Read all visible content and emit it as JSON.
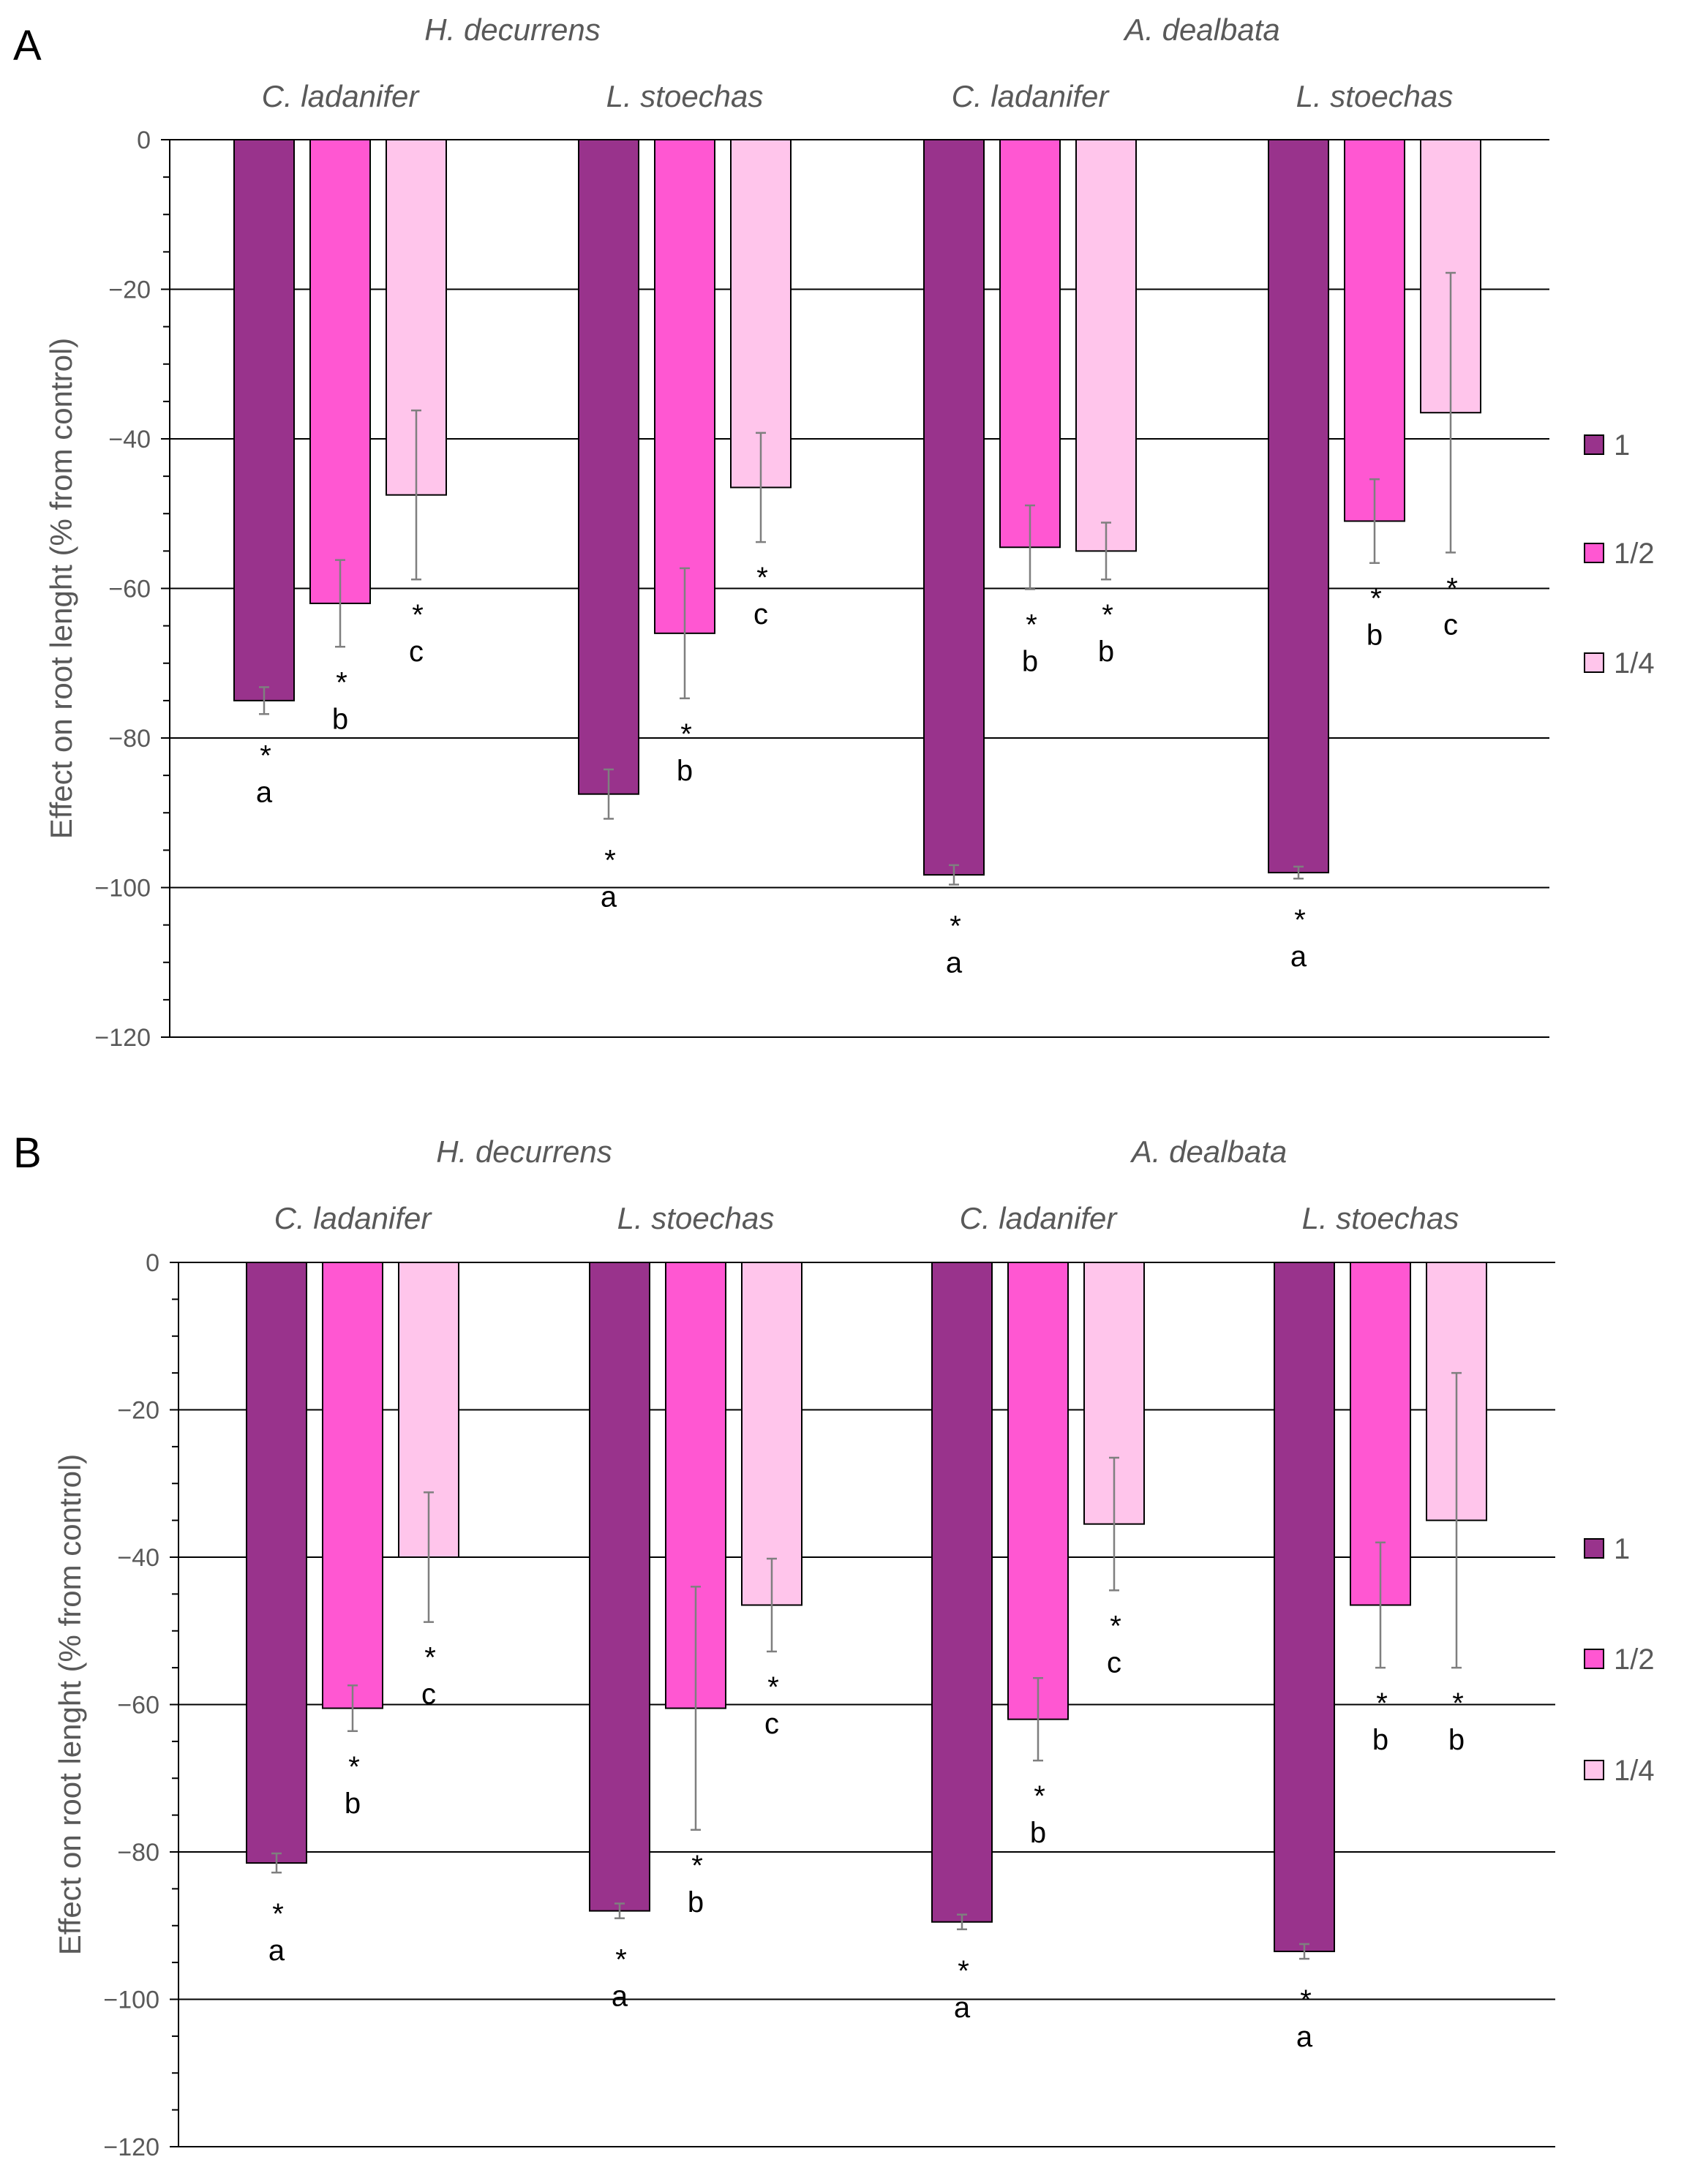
{
  "chart_data": [
    {
      "panel": "A",
      "type": "bar",
      "ylabel": "Effect on root lenght (% from control)",
      "ylim": [
        -120,
        0
      ],
      "yticks": [
        0,
        -20,
        -40,
        -60,
        -80,
        -100,
        -120
      ],
      "ytick_labels": [
        "0",
        "-20",
        "-40",
        "-60",
        "-80",
        "-100",
        "-120"
      ],
      "legend": [
        "1",
        "1/2",
        "1/4"
      ],
      "legend_position": "right",
      "colors": [
        "#99338c",
        "#ff57d2",
        "#ffc5eb"
      ],
      "groups": [
        {
          "host": "H. decurrens",
          "target": "C. ladanifer",
          "values": [
            -75,
            -62,
            -47.5
          ],
          "errors": [
            1.8,
            5.8,
            11.3
          ],
          "stars": [
            "*",
            "*",
            "*"
          ],
          "letters": [
            "a",
            "b",
            "c"
          ]
        },
        {
          "host": "H. decurrens",
          "target": "L. stoechas",
          "values": [
            -87.5,
            -66,
            -46.5
          ],
          "errors": [
            3.3,
            8.7,
            7.3
          ],
          "stars": [
            "*",
            "*",
            "*"
          ],
          "letters": [
            "a",
            "b",
            "c"
          ]
        },
        {
          "host": "A. dealbata",
          "target": "C. ladanifer",
          "values": [
            -98.3,
            -54.5,
            -55
          ],
          "errors": [
            1.3,
            5.6,
            3.8
          ],
          "stars": [
            "*",
            "*",
            "*"
          ],
          "letters": [
            "a",
            "b",
            "b"
          ]
        },
        {
          "host": "A. dealbata",
          "target": "L. stoechas",
          "values": [
            -98,
            -51,
            -36.5
          ],
          "errors": [
            0.8,
            5.6,
            18.7
          ],
          "stars": [
            "*",
            "*",
            "*"
          ],
          "letters": [
            "a",
            "b",
            "c"
          ]
        }
      ]
    },
    {
      "panel": "B",
      "type": "bar",
      "ylabel": "Effect on root lenght (% from control)",
      "ylim": [
        -120,
        0
      ],
      "yticks": [
        0,
        -20,
        -40,
        -60,
        -80,
        -100,
        -120
      ],
      "ytick_labels": [
        "0",
        "-20",
        "-40",
        "-60",
        "-80",
        "-100",
        "-120"
      ],
      "legend": [
        "1",
        "1/2",
        "1/4"
      ],
      "legend_position": "right",
      "colors": [
        "#99338c",
        "#ff57d2",
        "#ffc5eb"
      ],
      "groups": [
        {
          "host": "H. decurrens",
          "target": "C. ladanifer",
          "values": [
            -81.5,
            -60.5,
            -40
          ],
          "errors": [
            1.3,
            3.1,
            8.8
          ],
          "stars": [
            "*",
            "*",
            "*"
          ],
          "letters": [
            "a",
            "b",
            "c"
          ]
        },
        {
          "host": "H. decurrens",
          "target": "L. stoechas",
          "values": [
            -88,
            -60.5,
            -46.5
          ],
          "errors": [
            1.0,
            16.5,
            6.3
          ],
          "stars": [
            "*",
            "*",
            "*"
          ],
          "letters": [
            "a",
            "b",
            "c"
          ]
        },
        {
          "host": "A. dealbata",
          "target": "C. ladanifer",
          "values": [
            -89.5,
            -62,
            -35.5
          ],
          "errors": [
            1.0,
            5.6,
            9.0
          ],
          "stars": [
            "*",
            "*",
            "*"
          ],
          "letters": [
            "a",
            "b",
            "c"
          ]
        },
        {
          "host": "A. dealbata",
          "target": "L. stoechas",
          "values": [
            -93.5,
            -46.5,
            -35
          ],
          "errors": [
            1.0,
            8.5,
            20.0
          ],
          "stars": [
            "*",
            "*",
            "*"
          ],
          "letters": [
            "a",
            "b",
            "b"
          ]
        }
      ]
    }
  ]
}
